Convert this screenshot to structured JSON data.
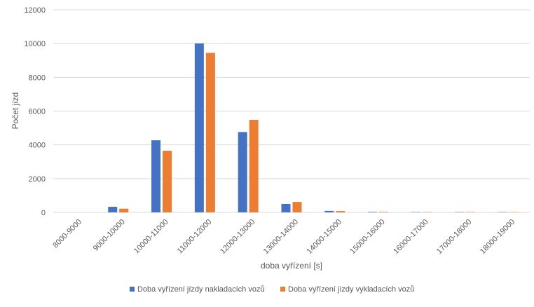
{
  "chart_data": {
    "type": "bar",
    "title": "",
    "xlabel": "doba vyřízení [s]",
    "ylabel": "Počet jízd",
    "ylim": [
      0,
      12000
    ],
    "yticks": [
      0,
      2000,
      4000,
      6000,
      8000,
      10000,
      12000
    ],
    "grid": true,
    "legend_position": "bottom",
    "categories": [
      "8000-9000",
      "9000-10000",
      "10000-11000",
      "11000-12000",
      "12000-13000",
      "13000-14000",
      "14000-15000",
      "15000-16000",
      "16000-17000",
      "17000-18000",
      "18000-19000"
    ],
    "series": [
      {
        "name": "Doba vyřízení jízdy nakladacích vozů",
        "color": "#4472C4",
        "values": [
          0,
          330,
          4270,
          10010,
          4760,
          500,
          90,
          30,
          20,
          20,
          20
        ]
      },
      {
        "name": "Doba vyřízení jízdy vykladacích vozů",
        "color": "#ED7D31",
        "values": [
          0,
          220,
          3650,
          9450,
          5480,
          620,
          80,
          30,
          20,
          20,
          20
        ]
      }
    ]
  }
}
